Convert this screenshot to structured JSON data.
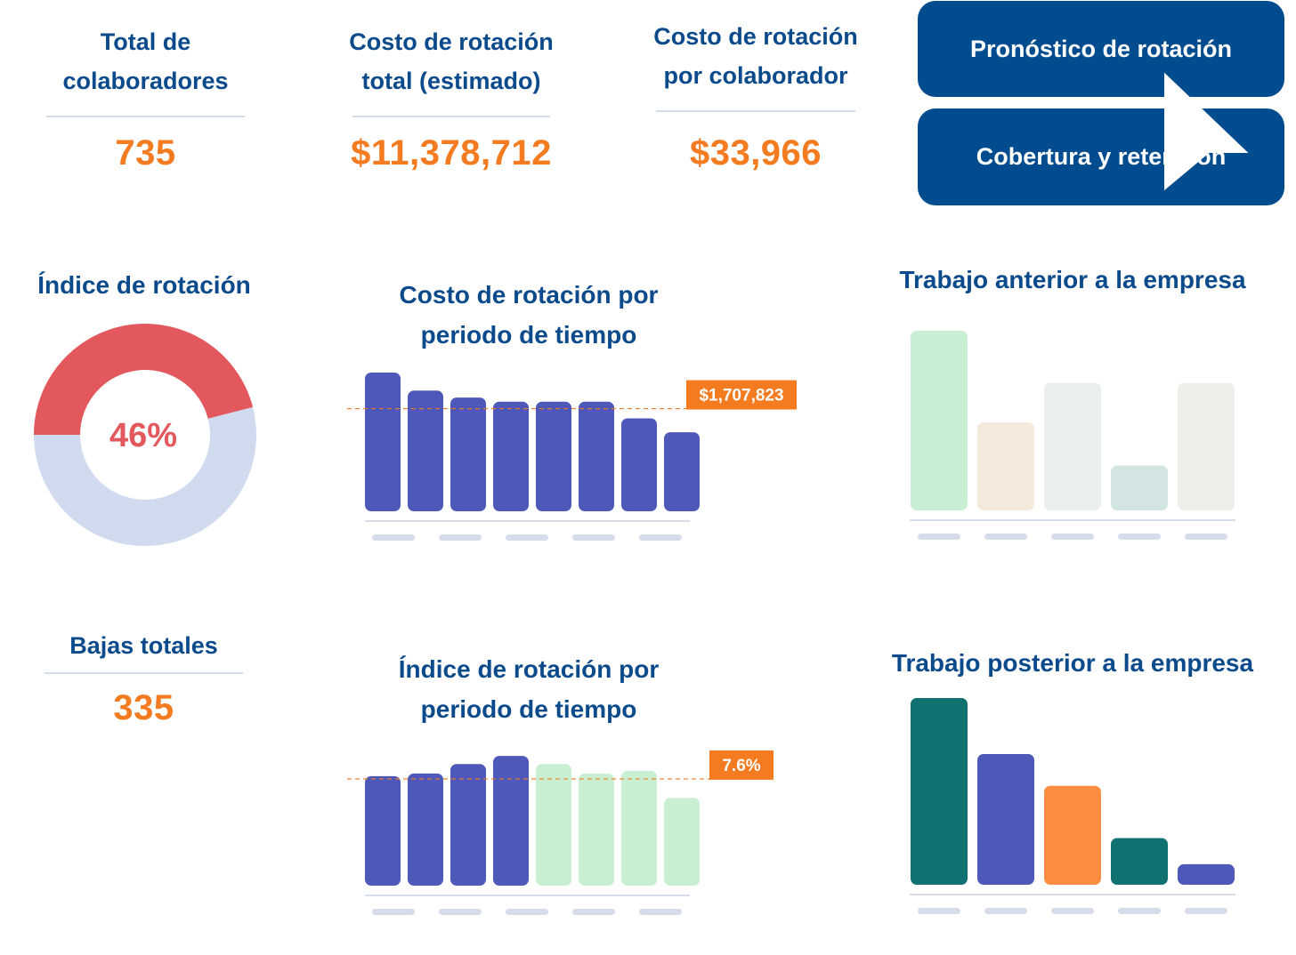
{
  "kpis": {
    "total_colaboradores": {
      "title_l1": "Total de",
      "title_l2": "colaboradores",
      "value": "735"
    },
    "costo_total": {
      "title_l1": "Costo de rotación",
      "title_l2": "total (estimado)",
      "value": "$11,378,712"
    },
    "costo_por_colaborador": {
      "title_l1": "Costo de rotación",
      "title_l2": "por colaborador",
      "value": "$33,966"
    },
    "bajas_totales": {
      "title": "Bajas totales",
      "value": "335"
    }
  },
  "nav": {
    "pronostico_label": "Pronóstico de rotación",
    "cobertura_label": "Cobertura y retención"
  },
  "cursor": {
    "icon": "arrow-cursor-icon"
  },
  "chart_data": [
    {
      "id": "indice-rotacion",
      "type": "pie",
      "title": "Índice de rotación",
      "center_label": "46%",
      "slices": [
        {
          "label": "",
          "value": 46,
          "color": "#e2585c"
        },
        {
          "label": "",
          "value": 54,
          "color": "#d1dbf0"
        }
      ]
    },
    {
      "id": "costo-periodo",
      "type": "bar",
      "title_l1": "Costo de rotación por",
      "title_l2": "periodo de tiempo",
      "values": [
        100,
        87,
        82,
        79,
        79,
        79,
        67,
        57
      ],
      "colors": [
        "#4e58b8",
        "#4e58b8",
        "#4e58b8",
        "#4e58b8",
        "#4e58b8",
        "#4e58b8",
        "#4e58b8",
        "#4e58b8"
      ],
      "ylim": [
        0,
        100
      ],
      "reference_line": {
        "value": 74,
        "label": "$1,707,823",
        "color": "#f47b20"
      }
    },
    {
      "id": "indice-periodo",
      "type": "bar",
      "title_l1": "Índice de rotación por",
      "title_l2": "periodo de tiempo",
      "values": [
        81,
        83,
        90,
        96,
        90,
        83,
        85,
        65
      ],
      "colors": [
        "#4e58b8",
        "#4e58b8",
        "#4e58b8",
        "#4e58b8",
        "#c8efd2",
        "#c8efd2",
        "#c8efd2",
        "#c8efd2"
      ],
      "ylim": [
        0,
        100
      ],
      "reference_line": {
        "value": 79,
        "label": "7.6%",
        "color": "#f47b20"
      }
    },
    {
      "id": "trabajo-anterior",
      "type": "bar",
      "title": "Trabajo anterior a la empresa",
      "values": [
        100,
        49,
        71,
        25,
        71
      ],
      "colors": [
        "#c8efd3",
        "#f4eadc",
        "#e9f0eb",
        "#d2e5e3",
        "#efefea"
      ],
      "ylim": [
        0,
        100
      ]
    },
    {
      "id": "trabajo-posterior",
      "type": "bar",
      "title": "Trabajo posterior a la empresa",
      "values": [
        100,
        70,
        53,
        25,
        11
      ],
      "colors": [
        "#117171",
        "#4e58b8",
        "#fd8d41",
        "#117171",
        "#4e58b8"
      ],
      "ylim": [
        0,
        100
      ]
    }
  ]
}
